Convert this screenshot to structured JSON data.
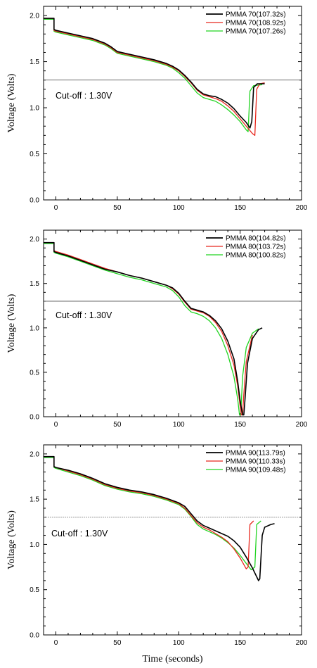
{
  "figure": {
    "xlabel": "Time (seconds)"
  },
  "chart_data": [
    {
      "type": "line",
      "ylabel": "Voltage (Volts)",
      "xlim": [
        -10,
        200
      ],
      "ylim": [
        0.0,
        2.1
      ],
      "xticks": [
        0,
        50,
        100,
        150,
        200
      ],
      "yticks": [
        0.0,
        0.5,
        1.0,
        1.5,
        2.0
      ],
      "legend_position": "top-right",
      "cutoff": {
        "value": 1.3,
        "label": "Cut-off : 1.30V"
      },
      "series": [
        {
          "name": "PMMA 70(107.32s)",
          "color": "#000000",
          "x": [
            -10,
            -1.5,
            -1.5,
            0,
            10,
            20,
            30,
            40,
            45,
            50,
            60,
            70,
            80,
            90,
            95,
            100,
            105,
            110,
            115,
            120,
            125,
            130,
            135,
            140,
            145,
            150,
            155,
            158,
            159.5,
            161,
            164,
            170
          ],
          "y": [
            1.97,
            1.97,
            1.85,
            1.84,
            1.81,
            1.78,
            1.75,
            1.7,
            1.66,
            1.61,
            1.58,
            1.55,
            1.52,
            1.48,
            1.45,
            1.41,
            1.35,
            1.28,
            1.2,
            1.15,
            1.13,
            1.12,
            1.09,
            1.05,
            0.99,
            0.91,
            0.84,
            0.78,
            0.85,
            1.22,
            1.26,
            1.26
          ]
        },
        {
          "name": "PMMA 70(108.92s)",
          "color": "#e8281e",
          "x": [
            -10,
            -1.5,
            -1.5,
            0,
            10,
            20,
            30,
            40,
            45,
            50,
            60,
            70,
            80,
            90,
            95,
            100,
            105,
            110,
            115,
            120,
            125,
            130,
            135,
            140,
            145,
            150,
            155,
            160,
            162,
            163.5,
            166,
            170
          ],
          "y": [
            1.97,
            1.97,
            1.84,
            1.83,
            1.8,
            1.77,
            1.74,
            1.69,
            1.65,
            1.6,
            1.57,
            1.54,
            1.51,
            1.47,
            1.44,
            1.4,
            1.34,
            1.27,
            1.19,
            1.14,
            1.12,
            1.1,
            1.07,
            1.02,
            0.96,
            0.88,
            0.8,
            0.72,
            0.7,
            1.2,
            1.26,
            1.27
          ]
        },
        {
          "name": "PMMA 70(107.26s)",
          "color": "#22d422",
          "x": [
            -10,
            -1.5,
            -1.5,
            0,
            10,
            20,
            30,
            40,
            45,
            50,
            60,
            70,
            80,
            90,
            95,
            100,
            105,
            110,
            115,
            120,
            125,
            130,
            135,
            140,
            145,
            150,
            155,
            156.5,
            158,
            161,
            168
          ],
          "y": [
            1.96,
            1.96,
            1.83,
            1.82,
            1.79,
            1.76,
            1.73,
            1.68,
            1.64,
            1.59,
            1.56,
            1.53,
            1.5,
            1.46,
            1.43,
            1.38,
            1.32,
            1.24,
            1.16,
            1.11,
            1.09,
            1.07,
            1.03,
            0.98,
            0.92,
            0.85,
            0.76,
            0.74,
            1.18,
            1.24,
            1.25
          ]
        }
      ]
    },
    {
      "type": "line",
      "ylabel": "Voltage (Volts)",
      "xlim": [
        -10,
        200
      ],
      "ylim": [
        0.0,
        2.1
      ],
      "xticks": [
        0,
        50,
        100,
        150,
        200
      ],
      "yticks": [
        0.0,
        0.5,
        1.0,
        1.5,
        2.0
      ],
      "legend_position": "top-right",
      "cutoff": {
        "value": 1.3,
        "label": "Cut-off : 1.30V"
      },
      "series": [
        {
          "name": "PMMA 80(104.82s)",
          "color": "#000000",
          "x": [
            -10,
            -1.5,
            -1.5,
            0,
            10,
            20,
            30,
            40,
            50,
            60,
            70,
            80,
            90,
            95,
            100,
            105,
            110,
            115,
            120,
            125,
            130,
            135,
            140,
            145,
            148,
            150,
            152,
            153,
            154,
            156,
            160,
            165,
            168
          ],
          "y": [
            1.96,
            1.96,
            1.86,
            1.85,
            1.81,
            1.76,
            1.71,
            1.66,
            1.63,
            1.59,
            1.56,
            1.52,
            1.48,
            1.45,
            1.39,
            1.3,
            1.22,
            1.2,
            1.18,
            1.14,
            1.08,
            0.99,
            0.85,
            0.65,
            0.4,
            0.18,
            0.02,
            0.02,
            0.2,
            0.6,
            0.88,
            0.98,
            1.0
          ]
        },
        {
          "name": "PMMA 80(103.72s)",
          "color": "#e8281e",
          "x": [
            -10,
            -1.5,
            -1.5,
            0,
            10,
            20,
            30,
            40,
            50,
            60,
            70,
            80,
            90,
            95,
            100,
            105,
            110,
            115,
            120,
            125,
            130,
            135,
            140,
            145,
            148,
            150,
            151,
            152,
            153,
            155,
            160
          ],
          "y": [
            1.96,
            1.96,
            1.87,
            1.86,
            1.82,
            1.77,
            1.72,
            1.67,
            1.63,
            1.59,
            1.56,
            1.52,
            1.48,
            1.44,
            1.38,
            1.29,
            1.21,
            1.19,
            1.17,
            1.13,
            1.06,
            0.96,
            0.8,
            0.58,
            0.35,
            0.12,
            0.02,
            0.02,
            0.25,
            0.62,
            0.92
          ]
        },
        {
          "name": "PMMA 80(100.82s)",
          "color": "#22d422",
          "x": [
            -10,
            -1.5,
            -1.5,
            0,
            10,
            20,
            30,
            40,
            50,
            60,
            70,
            80,
            90,
            95,
            100,
            105,
            110,
            115,
            120,
            125,
            130,
            135,
            140,
            145,
            148,
            149.5,
            150.5,
            152,
            155,
            160,
            165
          ],
          "y": [
            1.95,
            1.95,
            1.85,
            1.84,
            1.8,
            1.75,
            1.7,
            1.65,
            1.61,
            1.57,
            1.54,
            1.5,
            1.46,
            1.42,
            1.35,
            1.25,
            1.18,
            1.16,
            1.13,
            1.08,
            1.0,
            0.88,
            0.7,
            0.45,
            0.2,
            0.02,
            0.02,
            0.45,
            0.78,
            0.94,
            0.99
          ]
        }
      ]
    },
    {
      "type": "line",
      "ylabel": "Voltage (Volts)",
      "xlim": [
        -10,
        200
      ],
      "ylim": [
        0.0,
        2.1
      ],
      "xticks": [
        0,
        50,
        100,
        150,
        200
      ],
      "yticks": [
        0.0,
        0.5,
        1.0,
        1.5,
        2.0
      ],
      "legend_position": "top-right",
      "cutoff": {
        "value": 1.3,
        "label": "Cut-off : 1.30V"
      },
      "series": [
        {
          "name": "PMMA 90(113.79s)",
          "color": "#000000",
          "x": [
            -10,
            -1.5,
            -1.5,
            0,
            10,
            20,
            30,
            40,
            50,
            60,
            70,
            80,
            90,
            100,
            105,
            110,
            115,
            120,
            125,
            130,
            135,
            140,
            145,
            150,
            155,
            160,
            165,
            166,
            168,
            170,
            175,
            178
          ],
          "y": [
            1.97,
            1.97,
            1.86,
            1.85,
            1.82,
            1.78,
            1.73,
            1.67,
            1.63,
            1.6,
            1.58,
            1.55,
            1.51,
            1.46,
            1.42,
            1.34,
            1.26,
            1.21,
            1.18,
            1.15,
            1.12,
            1.09,
            1.04,
            0.97,
            0.86,
            0.74,
            0.6,
            0.62,
            1.1,
            1.19,
            1.22,
            1.23
          ]
        },
        {
          "name": "PMMA 90(110.33s)",
          "color": "#e8281e",
          "x": [
            -10,
            -1.5,
            -1.5,
            0,
            10,
            20,
            30,
            40,
            50,
            60,
            70,
            80,
            90,
            100,
            105,
            110,
            115,
            120,
            125,
            130,
            135,
            140,
            145,
            150,
            155,
            156.5,
            158,
            161
          ],
          "y": [
            1.97,
            1.97,
            1.86,
            1.85,
            1.81,
            1.77,
            1.72,
            1.66,
            1.62,
            1.59,
            1.57,
            1.54,
            1.5,
            1.45,
            1.4,
            1.32,
            1.24,
            1.19,
            1.16,
            1.12,
            1.08,
            1.03,
            0.95,
            0.85,
            0.73,
            0.75,
            1.22,
            1.26
          ]
        },
        {
          "name": "PMMA 90(109.48s)",
          "color": "#22d422",
          "x": [
            -10,
            -1.5,
            -1.5,
            0,
            10,
            20,
            30,
            40,
            50,
            60,
            70,
            80,
            90,
            100,
            105,
            110,
            115,
            120,
            125,
            130,
            135,
            140,
            145,
            150,
            155,
            159,
            162,
            163.5,
            167
          ],
          "y": [
            1.96,
            1.96,
            1.85,
            1.84,
            1.8,
            1.76,
            1.71,
            1.65,
            1.61,
            1.58,
            1.56,
            1.53,
            1.49,
            1.44,
            1.39,
            1.31,
            1.22,
            1.17,
            1.14,
            1.11,
            1.07,
            1.02,
            0.96,
            0.88,
            0.79,
            0.72,
            0.75,
            1.22,
            1.26
          ]
        }
      ]
    }
  ]
}
